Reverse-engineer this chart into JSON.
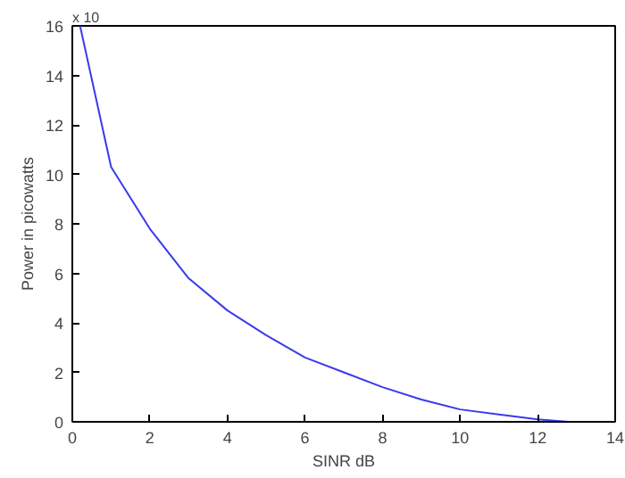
{
  "chart_data": {
    "type": "line",
    "xlabel": "SINR dB",
    "ylabel": "Power in picowatts",
    "annotations": [
      "x 10"
    ],
    "x": [
      0.2,
      1,
      2,
      3,
      4,
      5,
      6,
      7,
      8,
      9,
      10,
      11,
      12,
      12.8
    ],
    "series": [
      {
        "color": "#3a3aee",
        "values": [
          16,
          10.3,
          7.8,
          5.8,
          4.5,
          3.5,
          2.6,
          2.0,
          1.4,
          0.9,
          0.5,
          0.3,
          0.1,
          0
        ]
      }
    ],
    "xlim": [
      0,
      14
    ],
    "ylim": [
      0,
      16
    ],
    "xticks": [
      0,
      2,
      4,
      6,
      8,
      10,
      12,
      14
    ],
    "yticks": [
      0,
      2,
      4,
      6,
      8,
      10,
      12,
      14,
      16
    ],
    "grid": false
  }
}
